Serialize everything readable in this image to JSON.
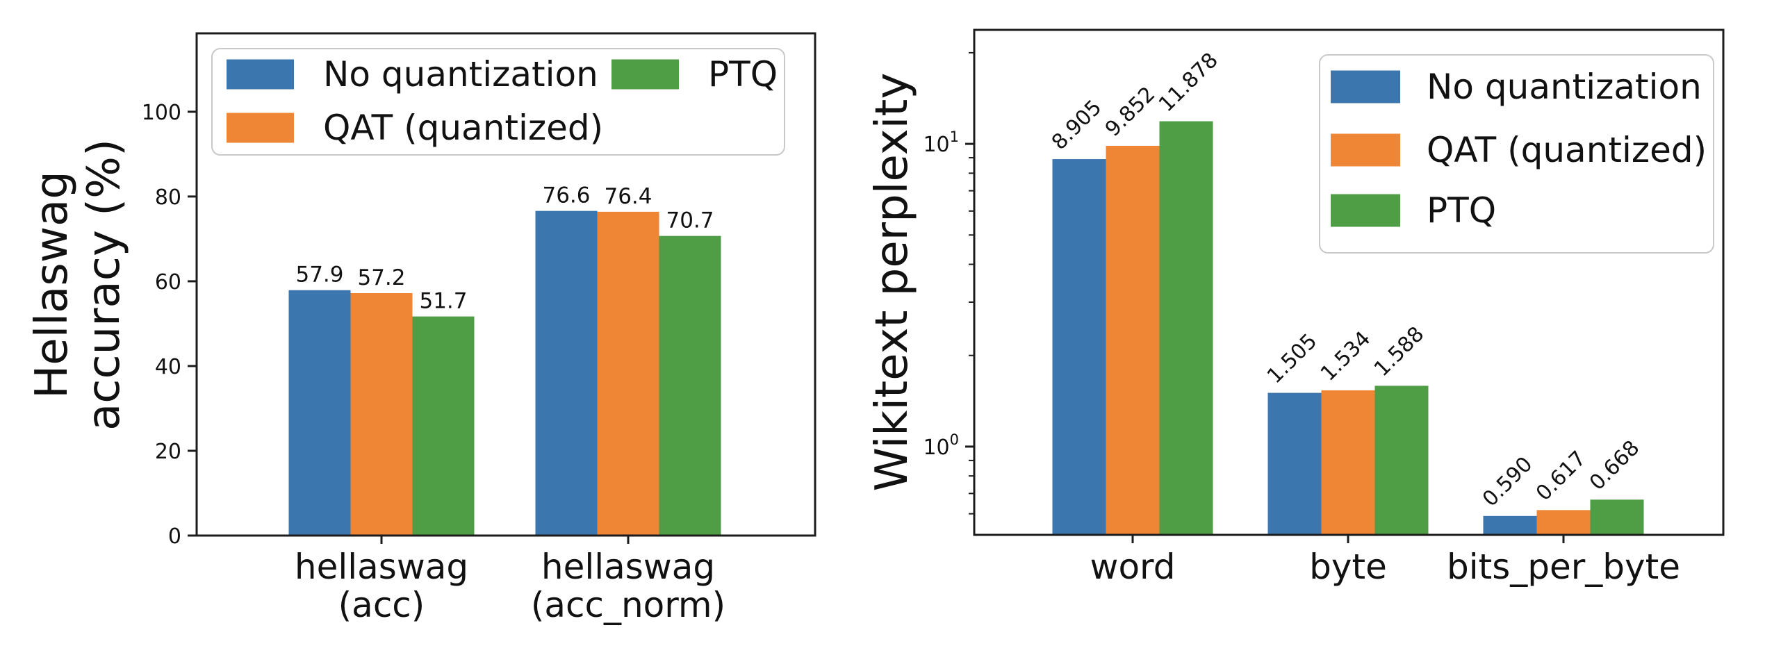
{
  "chart_data": [
    {
      "type": "bar",
      "title": "",
      "xlabel": "",
      "ylabel": "Hellaswag\naccuracy (%)",
      "yscale": "linear",
      "ylim": [
        0,
        118.5
      ],
      "yticks": [
        0,
        20,
        40,
        60,
        80,
        100
      ],
      "categories": [
        "hellaswag\n(acc)",
        "hellaswag\n(acc_norm)"
      ],
      "series": [
        {
          "name": "No quantization",
          "color": "#3b76af",
          "values": [
            57.9,
            76.6
          ],
          "labels": [
            "57.9",
            "76.6"
          ]
        },
        {
          "name": "QAT (quantized)",
          "color": "#ef8636",
          "values": [
            57.2,
            76.4
          ],
          "labels": [
            "57.2",
            "76.4"
          ]
        },
        {
          "name": "PTQ",
          "color": "#4f9d45",
          "values": [
            51.7,
            70.7
          ],
          "labels": [
            "51.7",
            "70.7"
          ]
        }
      ],
      "bar_label_rotation": 0,
      "legend": {
        "position": "upper left",
        "ncols": 2
      },
      "grid": false
    },
    {
      "type": "bar",
      "title": "",
      "xlabel": "",
      "ylabel": "Wikitext perplexity",
      "yscale": "log",
      "ylim": [
        0.511,
        23.8
      ],
      "yticks": [
        1,
        10
      ],
      "yticks_minor": [
        0.6,
        0.7,
        0.8,
        0.9,
        2,
        3,
        4,
        5,
        6,
        7,
        8,
        9,
        20
      ],
      "categories": [
        "word",
        "byte",
        "bits_per_byte"
      ],
      "series": [
        {
          "name": "No quantization",
          "color": "#3b76af",
          "values": [
            8.905,
            1.505,
            0.59
          ],
          "labels": [
            "8.905",
            "1.505",
            "0.590"
          ]
        },
        {
          "name": "QAT (quantized)",
          "color": "#ef8636",
          "values": [
            9.852,
            1.534,
            0.617
          ],
          "labels": [
            "9.852",
            "1.534",
            "0.617"
          ]
        },
        {
          "name": "PTQ",
          "color": "#4f9d45",
          "values": [
            11.878,
            1.588,
            0.668
          ],
          "labels": [
            "11.878",
            "1.588",
            "0.668"
          ]
        }
      ],
      "bar_label_rotation": 45,
      "legend": {
        "position": "upper right",
        "ncols": 1
      },
      "grid": false
    }
  ],
  "style": {
    "spine_color": "#1c1c1c",
    "text_color": "#111111",
    "legend_border_color": "#c9c9c9",
    "legend_background": "#ffffff"
  }
}
